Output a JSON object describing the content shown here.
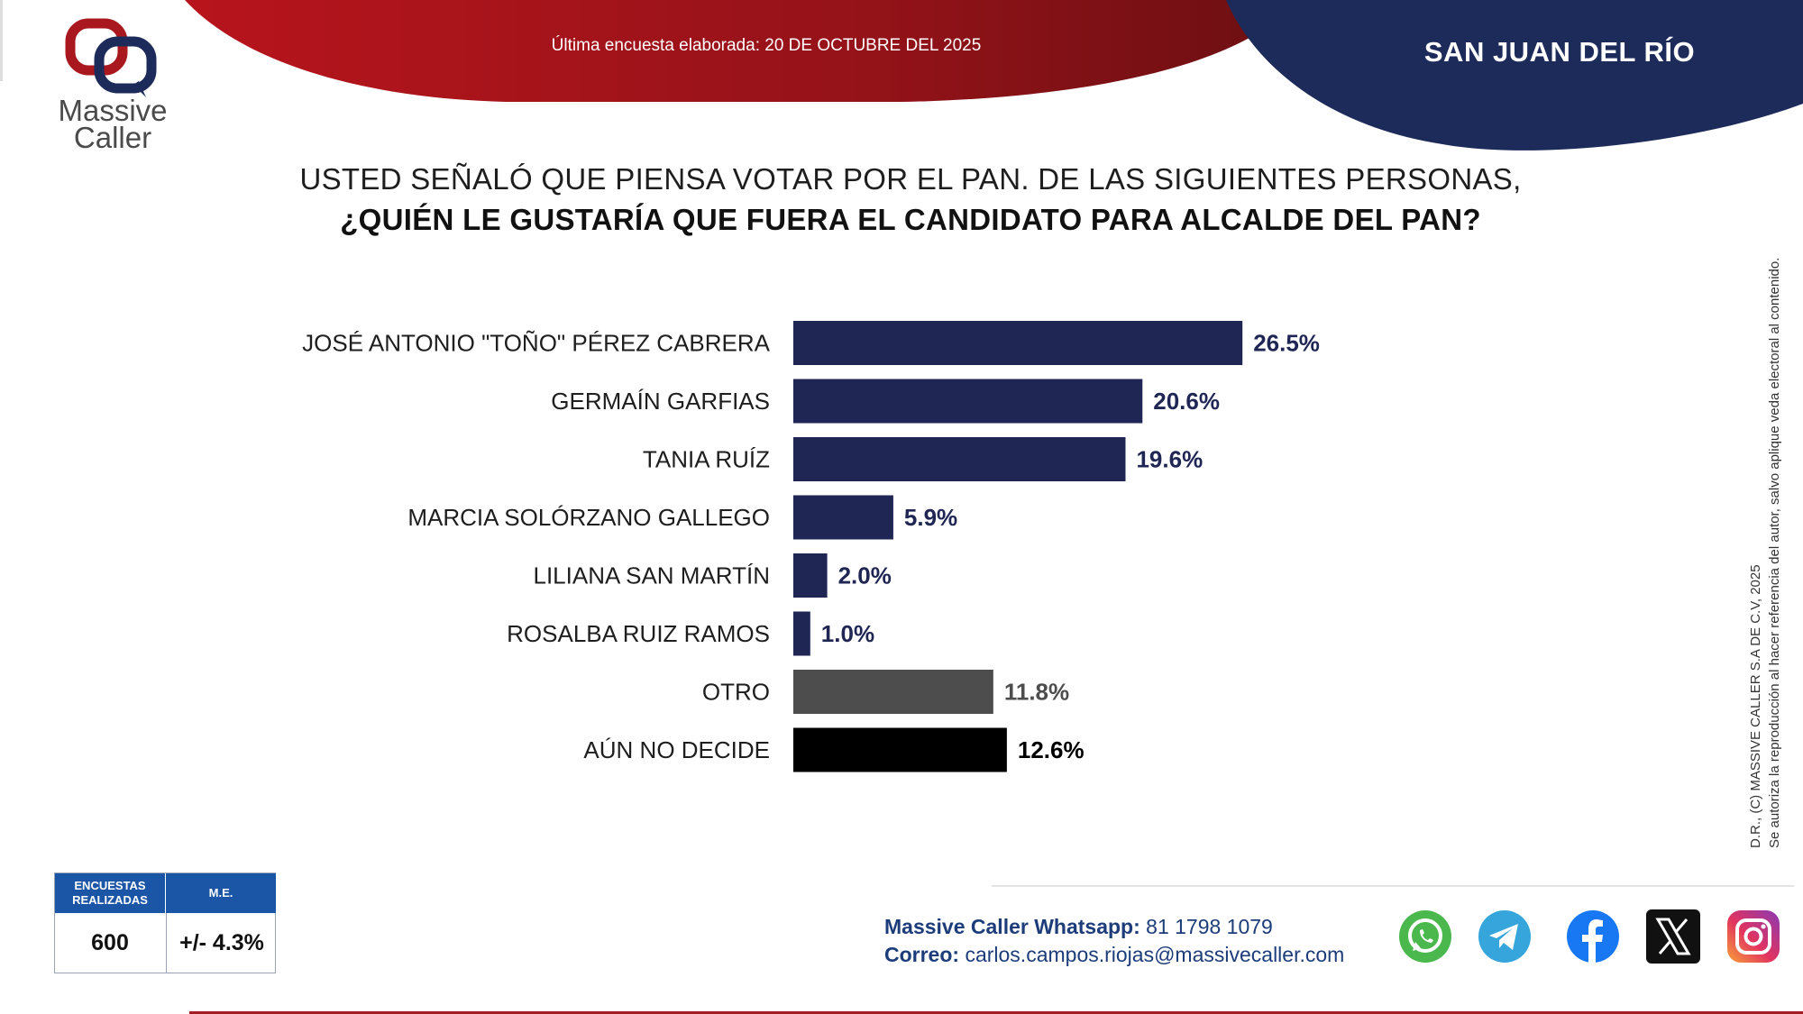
{
  "header": {
    "survey_date": "Última encuesta elaborada: 20 DE OCTUBRE DEL 2025",
    "region": "SAN JUAN DEL RÍO"
  },
  "logo": {
    "line1": "Massive",
    "line2": "Caller"
  },
  "question": {
    "line1": "USTED SEÑALÓ QUE PIENSA VOTAR POR EL PAN. DE LAS SIGUIENTES PERSONAS,",
    "line2": "¿QUIÉN LE GUSTARÍA QUE FUERA EL CANDIDATO PARA ALCALDE DEL PAN?"
  },
  "chart_data": {
    "type": "bar",
    "orientation": "horizontal",
    "title": "¿QUIÉN LE GUSTARÍA QUE FUERA EL CANDIDATO PARA ALCALDE DEL PAN?",
    "categories": [
      "JOSÉ ANTONIO \"TOÑO\" PÉREZ CABRERA",
      "GERMAÍN GARFIAS",
      "TANIA RUÍZ",
      "MARCIA SOLÓRZANO GALLEGO",
      "LILIANA SAN MARTÍN",
      "ROSALBA RUIZ RAMOS",
      "OTRO",
      "AÚN NO DECIDE"
    ],
    "values": [
      26.5,
      20.6,
      19.6,
      5.9,
      2.0,
      1.0,
      11.8,
      12.6
    ],
    "value_labels": [
      "26.5%",
      "20.6%",
      "19.6%",
      "5.9%",
      "2.0%",
      "1.0%",
      "11.8%",
      "12.6%"
    ],
    "colors": [
      "#1f2654",
      "#1f2654",
      "#1f2654",
      "#1f2654",
      "#1f2654",
      "#1f2654",
      "#4d4d4d",
      "#000000"
    ],
    "label_colors": [
      "#1f2654",
      "#1f2654",
      "#1f2654",
      "#1f2654",
      "#1f2654",
      "#1f2654",
      "#4d4d4d",
      "#000000"
    ],
    "unit": "%",
    "xlim": [
      0,
      30
    ],
    "grid": false,
    "legend": "none"
  },
  "disclaimer": {
    "line1": "D.R., (C) MASSIVE CALLER S.A DE C.V, 2025",
    "line2": "Se autoriza la reproducción al hacer referencia del autor, salvo aplique veda electoral al contenido."
  },
  "stats": {
    "header_surveys": "ENCUESTAS REALIZADAS",
    "header_me": "M.E.",
    "surveys": "600",
    "me": "+/- 4.3%"
  },
  "contact": {
    "whatsapp_label": "Massive Caller Whatsapp:",
    "whatsapp_number": "81 1798 1079",
    "email_label": "Correo:",
    "email": "carlos.campos.riojas@massivecaller.com"
  },
  "social_icons": [
    "whatsapp-icon",
    "telegram-icon",
    "facebook-icon",
    "x-icon",
    "instagram-icon"
  ],
  "colors": {
    "red": "#a8181e",
    "navy": "#1d2b5a",
    "bar_navy": "#1f2654",
    "bar_gray": "#4d4d4d",
    "bar_black": "#000000",
    "table_blue": "#1a55a6"
  }
}
